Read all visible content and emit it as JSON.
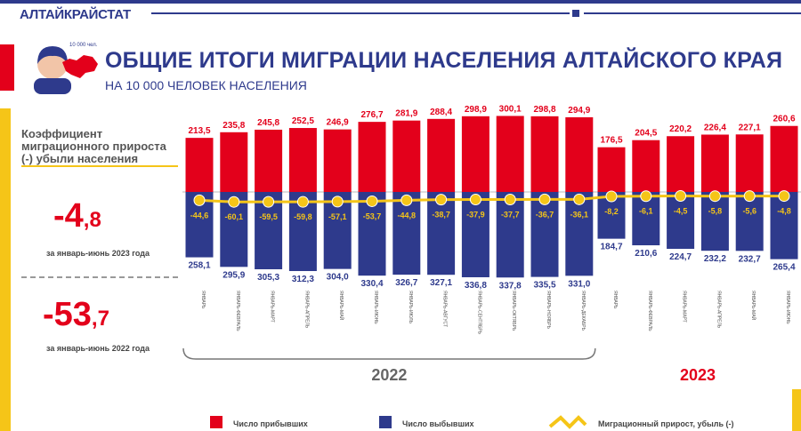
{
  "header": {
    "brand": "АЛТАЙКРАЙСТАТ",
    "icon_badge": "10 000 чел."
  },
  "title": "ОБЩИЕ ИТОГИ МИГРАЦИИ НАСЕЛЕНИЯ АЛТАЙСКОГО КРАЯ",
  "subtitle": "НА 10 000 ЧЕЛОВЕК НАСЕЛЕНИЯ",
  "sidebar": {
    "label": "Коэффициент миграционного прироста (-) убыли населения",
    "stat_2023": {
      "int": "-4",
      "frac": ",8",
      "caption": "за январь-июнь 2023 года"
    },
    "stat_2022": {
      "int": "-53",
      "frac": ",7",
      "caption": "за январь-июнь 2022 года"
    }
  },
  "colors": {
    "arrivals": "#e3001b",
    "departures": "#2e3a8c",
    "growth": "#f5c518"
  },
  "chart_data": {
    "type": "bar",
    "categories": [
      "ЯНВАРЬ",
      "ЯНВАРЬ-ФЕВРАЛЬ",
      "ЯНВАРЬ-МАРТ",
      "ЯНВАРЬ-АПРЕЛЬ",
      "ЯНВАРЬ-МАЙ",
      "ЯНВАРЬ-ИЮНЬ",
      "ЯНВАРЬ-ИЮЛЬ",
      "ЯНВАРЬ-АВГУСТ",
      "ЯНВАРЬ-СЕНТЯБРЬ",
      "ЯНВАРЬ-ОКТЯБРЬ",
      "ЯНВАРЬ-НОЯБРЬ",
      "ЯНВАРЬ-ДЕКАБРЬ",
      "ЯНВАРЬ",
      "ЯНВАРЬ-ФЕВРАЛЬ",
      "ЯНВАРЬ-МАРТ",
      "ЯНВАРЬ-АПРЕЛЬ",
      "ЯНВАРЬ-МАЙ",
      "ЯНВАРЬ-ИЮНЬ"
    ],
    "groups": [
      {
        "label": "2022",
        "count": 12
      },
      {
        "label": "2023",
        "count": 6
      }
    ],
    "series": [
      {
        "name": "Число прибывших",
        "values": [
          213.5,
          235.8,
          245.8,
          252.5,
          246.9,
          276.7,
          281.9,
          288.4,
          298.9,
          300.1,
          298.8,
          294.9,
          176.5,
          204.5,
          220.2,
          226.4,
          227.1,
          260.6
        ]
      },
      {
        "name": "Число выбывших",
        "values": [
          258.1,
          295.9,
          305.3,
          312.3,
          304.0,
          330.4,
          326.7,
          327.1,
          336.8,
          337.8,
          335.5,
          331.0,
          184.7,
          210.6,
          224.7,
          232.2,
          232.7,
          265.4
        ]
      },
      {
        "name": "Миграционный прирост, убыль (-)",
        "values": [
          -44.6,
          -60.1,
          -59.5,
          -59.8,
          -57.1,
          -53.7,
          -44.8,
          -38.7,
          -37.9,
          -37.7,
          -36.7,
          -36.1,
          -8.2,
          -6.1,
          -4.5,
          -5.8,
          -5.6,
          -4.8
        ]
      }
    ],
    "labels": {
      "arrivals": [
        "213,5",
        "235,8",
        "245,8",
        "252,5",
        "246,9",
        "276,7",
        "281,9",
        "288,4",
        "298,9",
        "300,1",
        "298,8",
        "294,9",
        "176,5",
        "204,5",
        "220,2",
        "226,4",
        "227,1",
        "260,6"
      ],
      "departures": [
        "258,1",
        "295,9",
        "305,3",
        "312,3",
        "304,0",
        "330,4",
        "326,7",
        "327,1",
        "336,8",
        "337,8",
        "335,5",
        "331,0",
        "184,7",
        "210,6",
        "224,7",
        "232,2",
        "232,7",
        "265,4"
      ],
      "growth": [
        "-44,6",
        "-60,1",
        "-59,5",
        "-59,8",
        "-57,1",
        "-53,7",
        "-44,8",
        "-38,7",
        "-37,9",
        "-37,7",
        "-36,7",
        "-36,1",
        "-8,2",
        "-6,1",
        "-4,5",
        "-5,8",
        "-5,6",
        "-4,8"
      ]
    },
    "legend": [
      "Число прибывших",
      "Число выбывших",
      "Миграционный прирост, убыль (-)"
    ],
    "title": "ОБЩИЕ ИТОГИ МИГРАЦИИ НАСЕЛЕНИЯ АЛТАЙСКОГО КРАЯ"
  }
}
